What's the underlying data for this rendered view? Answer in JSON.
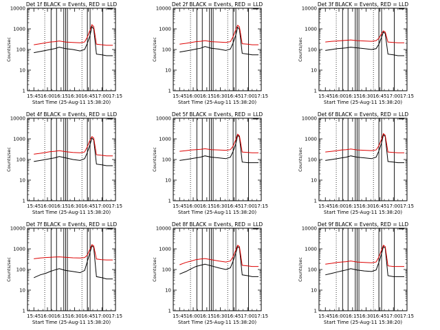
{
  "figure": {
    "panel_count": 9,
    "x_tick_labels": [
      "15:45",
      "16:00",
      "16:15",
      "16:30",
      "16:45",
      "17:00",
      "17:15"
    ],
    "y_tick_labels": [
      "1",
      "10",
      "100",
      "1000",
      "10000"
    ],
    "ylabel": "Counts/sec",
    "xlabel": "Start Time (25-Aug-11 15:38:20)"
  },
  "colors": {
    "events": "#000000",
    "lld": "#dd0000",
    "frame": "#000000"
  },
  "chart_data": [
    {
      "type": "line",
      "title": "Det 1f BLACK = Events, RED = LLD",
      "xlabel": "Start Time (25-Aug-11 15:38:20)",
      "ylabel": "Counts/sec",
      "yscale": "log",
      "ylim": [
        1,
        10000
      ],
      "xlim": [
        "15:38",
        "17:15"
      ],
      "x": [
        "15:45",
        "15:52",
        "15:58",
        "16:03",
        "16:08",
        "16:13",
        "16:20",
        "16:28",
        "16:36",
        "16:41",
        "16:44",
        "16:47",
        "16:49",
        "16:51",
        "16:54",
        "17:00",
        "17:05",
        "17:12"
      ],
      "series": [
        {
          "name": "Events",
          "color": "#000000",
          "values": [
            70,
            80,
            90,
            100,
            110,
            130,
            110,
            100,
            85,
            100,
            200,
            500,
            1300,
            1000,
            60,
            55,
            50,
            50
          ]
        },
        {
          "name": "LLD",
          "color": "#dd0000",
          "values": [
            170,
            190,
            210,
            230,
            240,
            260,
            230,
            220,
            210,
            230,
            400,
            900,
            1600,
            1300,
            180,
            170,
            160,
            160
          ]
        }
      ],
      "vlines_dotted": [
        "15:57",
        "16:38"
      ],
      "vlines_solid": [
        "16:04",
        "16:10",
        "16:18",
        "16:20",
        "16:22",
        "16:44",
        "16:47",
        "17:01"
      ]
    },
    {
      "type": "line",
      "title": "Det 2f BLACK = Events, RED = LLD",
      "xlabel": "Start Time (25-Aug-11 15:38:20)",
      "ylabel": "Counts/sec",
      "yscale": "log",
      "ylim": [
        1,
        10000
      ],
      "xlim": [
        "15:38",
        "17:15"
      ],
      "x": [
        "15:45",
        "15:52",
        "15:58",
        "16:03",
        "16:08",
        "16:13",
        "16:20",
        "16:28",
        "16:36",
        "16:41",
        "16:44",
        "16:47",
        "16:49",
        "16:51",
        "16:54",
        "17:00",
        "17:05",
        "17:12"
      ],
      "series": [
        {
          "name": "Events",
          "color": "#000000",
          "values": [
            75,
            85,
            95,
            105,
            115,
            140,
            115,
            105,
            90,
            105,
            210,
            520,
            1200,
            950,
            65,
            60,
            55,
            55
          ]
        },
        {
          "name": "LLD",
          "color": "#dd0000",
          "values": [
            180,
            200,
            220,
            240,
            250,
            270,
            240,
            230,
            220,
            240,
            420,
            950,
            1500,
            1250,
            190,
            180,
            170,
            170
          ]
        }
      ],
      "vlines_dotted": [
        "15:57",
        "16:38"
      ],
      "vlines_solid": [
        "16:04",
        "16:10",
        "16:18",
        "16:20",
        "16:22",
        "16:44",
        "16:47",
        "17:01"
      ]
    },
    {
      "type": "line",
      "title": "Det 3f BLACK = Events, RED = LLD",
      "xlabel": "Start Time (25-Aug-11 15:38:20)",
      "ylabel": "Counts/sec",
      "yscale": "log",
      "ylim": [
        1,
        10000
      ],
      "xlim": [
        "15:38",
        "17:15"
      ],
      "x": [
        "15:45",
        "15:52",
        "15:58",
        "16:03",
        "16:08",
        "16:13",
        "16:20",
        "16:28",
        "16:36",
        "16:41",
        "16:44",
        "16:47",
        "16:49",
        "16:51",
        "16:54",
        "17:00",
        "17:05",
        "17:12"
      ],
      "series": [
        {
          "name": "Events",
          "color": "#000000",
          "values": [
            90,
            100,
            110,
            115,
            120,
            130,
            120,
            110,
            100,
            110,
            180,
            400,
            700,
            600,
            60,
            55,
            50,
            50
          ]
        },
        {
          "name": "LLD",
          "color": "#dd0000",
          "values": [
            230,
            250,
            260,
            270,
            280,
            290,
            270,
            260,
            250,
            270,
            350,
            600,
            800,
            700,
            230,
            220,
            210,
            210
          ]
        }
      ],
      "vlines_dotted": [
        "15:57",
        "16:38"
      ],
      "vlines_solid": [
        "16:04",
        "16:10",
        "16:18",
        "16:20",
        "16:22",
        "16:44",
        "16:47",
        "17:01"
      ]
    },
    {
      "type": "line",
      "title": "Det 4f BLACK = Events, RED = LLD",
      "xlabel": "Start Time (25-Aug-11 15:38:20)",
      "ylabel": "Counts/sec",
      "yscale": "log",
      "ylim": [
        1,
        10000
      ],
      "xlim": [
        "15:38",
        "17:15"
      ],
      "x": [
        "15:45",
        "15:52",
        "15:58",
        "16:03",
        "16:08",
        "16:13",
        "16:20",
        "16:28",
        "16:36",
        "16:41",
        "16:44",
        "16:47",
        "16:49",
        "16:51",
        "16:54",
        "17:00",
        "17:05",
        "17:12"
      ],
      "series": [
        {
          "name": "Events",
          "color": "#000000",
          "values": [
            80,
            90,
            100,
            110,
            120,
            140,
            120,
            100,
            90,
            110,
            220,
            550,
            1100,
            900,
            60,
            55,
            50,
            50
          ]
        },
        {
          "name": "LLD",
          "color": "#dd0000",
          "values": [
            180,
            200,
            220,
            240,
            250,
            270,
            240,
            220,
            210,
            230,
            420,
            900,
            1300,
            1100,
            170,
            160,
            150,
            150
          ]
        }
      ],
      "vlines_dotted": [
        "15:57",
        "16:38"
      ],
      "vlines_solid": [
        "16:04",
        "16:10",
        "16:18",
        "16:20",
        "16:22",
        "16:44",
        "16:47",
        "17:01"
      ]
    },
    {
      "type": "line",
      "title": "Det 5f BLACK = Events, RED = LLD",
      "xlabel": "Start Time (25-Aug-11 15:38:20)",
      "ylabel": "Counts/sec",
      "yscale": "log",
      "ylim": [
        1,
        10000
      ],
      "xlim": [
        "15:38",
        "17:15"
      ],
      "x": [
        "15:45",
        "15:52",
        "15:58",
        "16:03",
        "16:08",
        "16:13",
        "16:20",
        "16:28",
        "16:36",
        "16:41",
        "16:44",
        "16:47",
        "16:49",
        "16:51",
        "16:54",
        "17:00",
        "17:05",
        "17:12"
      ],
      "series": [
        {
          "name": "Events",
          "color": "#000000",
          "values": [
            90,
            100,
            110,
            120,
            130,
            150,
            130,
            120,
            110,
            130,
            250,
            600,
            1500,
            1200,
            75,
            70,
            70,
            70
          ]
        },
        {
          "name": "LLD",
          "color": "#dd0000",
          "values": [
            250,
            270,
            290,
            300,
            310,
            330,
            300,
            290,
            280,
            300,
            450,
            950,
            1700,
            1400,
            230,
            220,
            210,
            210
          ]
        }
      ],
      "vlines_dotted": [
        "15:57",
        "16:38"
      ],
      "vlines_solid": [
        "16:04",
        "16:10",
        "16:18",
        "16:20",
        "16:22",
        "16:44",
        "16:47",
        "17:01"
      ]
    },
    {
      "type": "line",
      "title": "Det 6f BLACK = Events, RED = LLD",
      "xlabel": "Start Time (25-Aug-11 15:38:20)",
      "ylabel": "Counts/sec",
      "yscale": "log",
      "ylim": [
        1,
        10000
      ],
      "xlim": [
        "15:38",
        "17:15"
      ],
      "x": [
        "15:45",
        "15:52",
        "15:58",
        "16:03",
        "16:08",
        "16:13",
        "16:20",
        "16:28",
        "16:36",
        "16:41",
        "16:44",
        "16:47",
        "16:49",
        "16:51",
        "16:54",
        "17:00",
        "17:05",
        "17:12"
      ],
      "series": [
        {
          "name": "Events",
          "color": "#000000",
          "values": [
            90,
            100,
            110,
            120,
            130,
            150,
            130,
            120,
            110,
            130,
            260,
            650,
            1600,
            1300,
            80,
            75,
            70,
            70
          ]
        },
        {
          "name": "LLD",
          "color": "#dd0000",
          "values": [
            230,
            250,
            270,
            290,
            300,
            320,
            290,
            280,
            270,
            290,
            460,
            1000,
            1800,
            1500,
            230,
            220,
            210,
            210
          ]
        }
      ],
      "vlines_dotted": [
        "15:57",
        "16:38"
      ],
      "vlines_solid": [
        "16:04",
        "16:10",
        "16:18",
        "16:20",
        "16:22",
        "16:44",
        "16:47",
        "17:01"
      ]
    },
    {
      "type": "line",
      "title": "Det 7f BLACK = Events, RED = LLD",
      "xlabel": "Start Time (25-Aug-11 15:38:20)",
      "ylabel": "Counts/sec",
      "yscale": "log",
      "ylim": [
        1,
        10000
      ],
      "xlim": [
        "15:38",
        "17:15"
      ],
      "x": [
        "15:45",
        "15:52",
        "15:58",
        "16:03",
        "16:08",
        "16:13",
        "16:20",
        "16:28",
        "16:36",
        "16:41",
        "16:44",
        "16:47",
        "16:49",
        "16:51",
        "16:54",
        "17:00",
        "17:05",
        "17:12"
      ],
      "series": [
        {
          "name": "Events",
          "color": "#000000",
          "values": [
            40,
            55,
            65,
            80,
            95,
            110,
            90,
            80,
            70,
            90,
            250,
            700,
            1400,
            1200,
            45,
            40,
            35,
            35
          ]
        },
        {
          "name": "LLD",
          "color": "#dd0000",
          "values": [
            330,
            360,
            380,
            390,
            400,
            410,
            390,
            370,
            360,
            380,
            500,
            1000,
            1600,
            1400,
            320,
            300,
            290,
            290
          ]
        }
      ],
      "vlines_dotted": [
        "15:57",
        "16:38"
      ],
      "vlines_solid": [
        "16:04",
        "16:10",
        "16:18",
        "16:20",
        "16:22",
        "16:44",
        "16:47",
        "17:01"
      ]
    },
    {
      "type": "line",
      "title": "Det 8f BLACK = Events, RED = LLD",
      "xlabel": "Start Time (25-Aug-11 15:38:20)",
      "ylabel": "Counts/sec",
      "yscale": "log",
      "ylim": [
        1,
        10000
      ],
      "xlim": [
        "15:38",
        "17:15"
      ],
      "x": [
        "15:45",
        "15:52",
        "15:58",
        "16:03",
        "16:08",
        "16:13",
        "16:20",
        "16:28",
        "16:36",
        "16:41",
        "16:44",
        "16:47",
        "16:49",
        "16:51",
        "16:54",
        "17:00",
        "17:05",
        "17:12"
      ],
      "series": [
        {
          "name": "Events",
          "color": "#000000",
          "values": [
            60,
            80,
            110,
            140,
            160,
            180,
            150,
            120,
            100,
            120,
            260,
            650,
            1300,
            1100,
            55,
            50,
            45,
            45
          ]
        },
        {
          "name": "LLD",
          "color": "#dd0000",
          "values": [
            170,
            220,
            260,
            300,
            320,
            340,
            300,
            260,
            230,
            260,
            420,
            900,
            1500,
            1300,
            160,
            150,
            140,
            140
          ]
        }
      ],
      "vlines_dotted": [
        "15:57",
        "16:38"
      ],
      "vlines_solid": [
        "16:04",
        "16:10",
        "16:18",
        "16:20",
        "16:22",
        "16:44",
        "16:47",
        "17:01"
      ]
    },
    {
      "type": "line",
      "title": "Det 9f BLACK = Events, RED = LLD",
      "xlabel": "Start Time (25-Aug-11 15:38:20)",
      "ylabel": "Counts/sec",
      "yscale": "log",
      "ylim": [
        1,
        10000
      ],
      "xlim": [
        "15:38",
        "17:15"
      ],
      "x": [
        "15:45",
        "15:52",
        "15:58",
        "16:03",
        "16:08",
        "16:13",
        "16:20",
        "16:28",
        "16:36",
        "16:41",
        "16:44",
        "16:47",
        "16:49",
        "16:51",
        "16:54",
        "17:00",
        "17:05",
        "17:12"
      ],
      "series": [
        {
          "name": "Events",
          "color": "#000000",
          "values": [
            55,
            65,
            75,
            85,
            95,
            110,
            95,
            85,
            80,
            95,
            220,
            600,
            1300,
            1100,
            50,
            45,
            45,
            45
          ]
        },
        {
          "name": "LLD",
          "color": "#dd0000",
          "values": [
            180,
            200,
            220,
            230,
            240,
            260,
            230,
            220,
            210,
            230,
            400,
            900,
            1500,
            1300,
            150,
            140,
            140,
            140
          ]
        }
      ],
      "vlines_dotted": [
        "15:57",
        "16:38"
      ],
      "vlines_solid": [
        "16:04",
        "16:10",
        "16:18",
        "16:20",
        "16:22",
        "16:44",
        "16:47",
        "17:01"
      ]
    }
  ]
}
